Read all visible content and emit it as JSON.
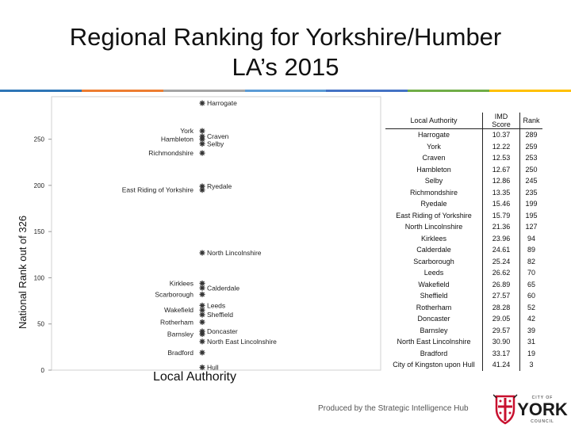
{
  "title_line1": "Regional Ranking for Yorkshire/Humber",
  "title_line2": "LA’s 2015",
  "accent_colors": [
    "#2e75b6",
    "#ed7d31",
    "#a5a5a5",
    "#5b9bd5",
    "#4472c4",
    "#70ad47",
    "#ffc000"
  ],
  "chart_data": {
    "type": "scatter",
    "ylabel": "National Rank out of 326",
    "xlabel": "Local Authority",
    "yticks": [
      0,
      50,
      100,
      150,
      200,
      250
    ],
    "ylim": [
      0,
      296
    ],
    "points": [
      {
        "name": "Harrogate",
        "rank": 289,
        "side": "right"
      },
      {
        "name": "York",
        "rank": 259,
        "side": "left"
      },
      {
        "name": "Craven",
        "rank": 253,
        "side": "right"
      },
      {
        "name": "Hambleton",
        "rank": 250,
        "side": "left"
      },
      {
        "name": "Selby",
        "rank": 245,
        "side": "right"
      },
      {
        "name": "Richmondshire",
        "rank": 235,
        "side": "left"
      },
      {
        "name": "Ryedale",
        "rank": 199,
        "side": "right"
      },
      {
        "name": "East Riding of Yorkshire",
        "rank": 195,
        "side": "left"
      },
      {
        "name": "North Lincolnshire",
        "rank": 127,
        "side": "right"
      },
      {
        "name": "Kirklees",
        "rank": 94,
        "side": "left"
      },
      {
        "name": "Calderdale",
        "rank": 89,
        "side": "right"
      },
      {
        "name": "Scarborough",
        "rank": 82,
        "side": "left"
      },
      {
        "name": "Leeds",
        "rank": 70,
        "side": "right"
      },
      {
        "name": "Wakefield",
        "rank": 65,
        "side": "left"
      },
      {
        "name": "Sheffield",
        "rank": 60,
        "side": "right"
      },
      {
        "name": "Rotherham",
        "rank": 52,
        "side": "left"
      },
      {
        "name": "Doncaster",
        "rank": 42,
        "side": "right"
      },
      {
        "name": "Barnsley",
        "rank": 39,
        "side": "left"
      },
      {
        "name": "North East Lincolnshire",
        "rank": 31,
        "side": "right"
      },
      {
        "name": "Bradford",
        "rank": 19,
        "side": "left"
      },
      {
        "name": "Hull",
        "rank": 3,
        "side": "right"
      }
    ]
  },
  "table": {
    "headers": [
      "Local Authority",
      "IMD Score",
      "Rank"
    ],
    "rows": [
      [
        "Harrogate",
        "10.37",
        "289"
      ],
      [
        "York",
        "12.22",
        "259"
      ],
      [
        "Craven",
        "12.53",
        "253"
      ],
      [
        "Hambleton",
        "12.67",
        "250"
      ],
      [
        "Selby",
        "12.86",
        "245"
      ],
      [
        "Richmondshire",
        "13.35",
        "235"
      ],
      [
        "Ryedale",
        "15.46",
        "199"
      ],
      [
        "East Riding of Yorkshire",
        "15.79",
        "195"
      ],
      [
        "North Lincolnshire",
        "21.36",
        "127"
      ],
      [
        "Kirklees",
        "23.96",
        "94"
      ],
      [
        "Calderdale",
        "24.61",
        "89"
      ],
      [
        "Scarborough",
        "25.24",
        "82"
      ],
      [
        "Leeds",
        "26.62",
        "70"
      ],
      [
        "Wakefield",
        "26.89",
        "65"
      ],
      [
        "Sheffield",
        "27.57",
        "60"
      ],
      [
        "Rotherham",
        "28.28",
        "52"
      ],
      [
        "Doncaster",
        "29.05",
        "42"
      ],
      [
        "Barnsley",
        "29.57",
        "39"
      ],
      [
        "North East Lincolnshire",
        "30.90",
        "31"
      ],
      [
        "Bradford",
        "33.17",
        "19"
      ],
      [
        "City of Kingston upon Hull",
        "41.24",
        "3"
      ]
    ]
  },
  "footer": "Produced by the Strategic Intelligence Hub",
  "logo": {
    "top": "CITY OF",
    "main": "YORK",
    "bottom": "COUNCIL",
    "color": "#1a1a1a",
    "accent": "#c8102e"
  }
}
